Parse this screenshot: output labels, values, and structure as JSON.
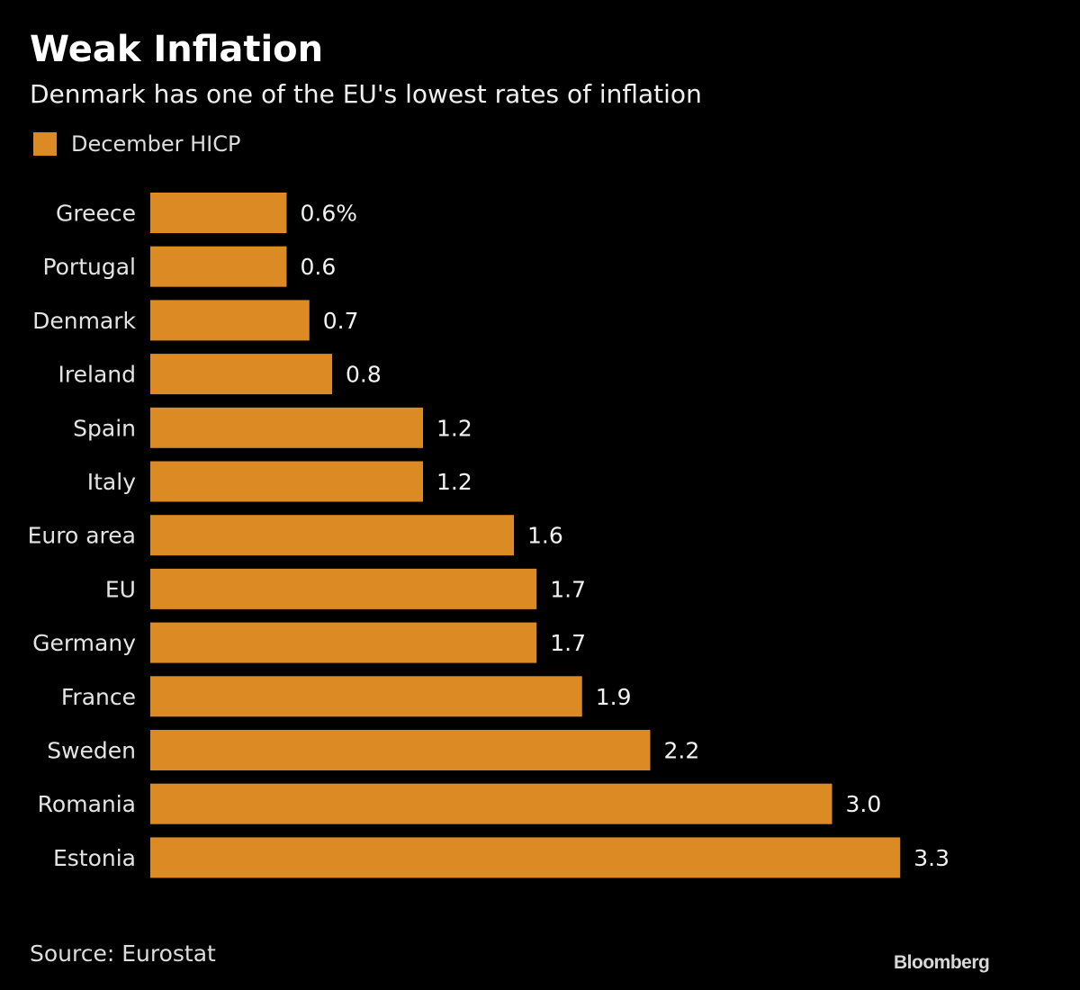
{
  "colors": {
    "bar": "#DC8A24",
    "background": "#000000",
    "text": "#E8E8E8"
  },
  "source": "Source: Eurostat",
  "logo": "Bloomberg",
  "chart_data": {
    "type": "bar",
    "orientation": "horizontal",
    "title": "Weak Inflation",
    "subtitle": "Denmark has one of the EU's lowest rates of inflation",
    "legend": "December HICP",
    "legend_position": "top-left",
    "grid": false,
    "categories": [
      "Greece",
      "Portugal",
      "Denmark",
      "Ireland",
      "Spain",
      "Italy",
      "Euro area",
      "EU",
      "Germany",
      "France",
      "Sweden",
      "Romania",
      "Estonia"
    ],
    "values": [
      0.6,
      0.6,
      0.7,
      0.8,
      1.2,
      1.2,
      1.6,
      1.7,
      1.7,
      1.9,
      2.2,
      3.0,
      3.3
    ],
    "data_labels": [
      "0.6%",
      "0.6",
      "0.7",
      "0.8",
      "1.2",
      "1.2",
      "1.6",
      "1.7",
      "1.7",
      "1.9",
      "2.2",
      "3.0",
      "3.3"
    ],
    "unit": "%"
  }
}
